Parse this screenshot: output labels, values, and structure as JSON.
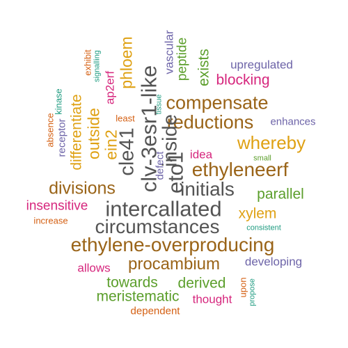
{
  "colors": {
    "brown": "#9a6418",
    "green": "#5b9e2b",
    "purple": "#6d64a8",
    "magenta": "#d6267d",
    "orange": "#d45f12",
    "gold": "#dfa114",
    "teal": "#1e9b80",
    "gray": "#545454"
  },
  "words": [
    "upregulated",
    "blocking",
    "compensate",
    "reductions",
    "enhances",
    "whereby",
    "small",
    "ethyleneerf",
    "idea",
    "parallel",
    "initials",
    "divisions",
    "insensitive",
    "intercallated",
    "xylem",
    "increase",
    "consistent",
    "circumstances",
    "ethylene-overproducing",
    "developing",
    "procambium",
    "allows",
    "towards",
    "derived",
    "meristematic",
    "thought",
    "dependent",
    "least",
    "vascular",
    "peptide",
    "exists",
    "exhibit",
    "signalling",
    "phloem",
    "ap2erf",
    "kinase",
    "absence",
    "receptor",
    "differentiate",
    "outside",
    "ein2",
    "cle41",
    "clv-3esr1-like",
    "inside",
    "eto1",
    "defect",
    "tissue",
    "upon",
    "propose"
  ]
}
